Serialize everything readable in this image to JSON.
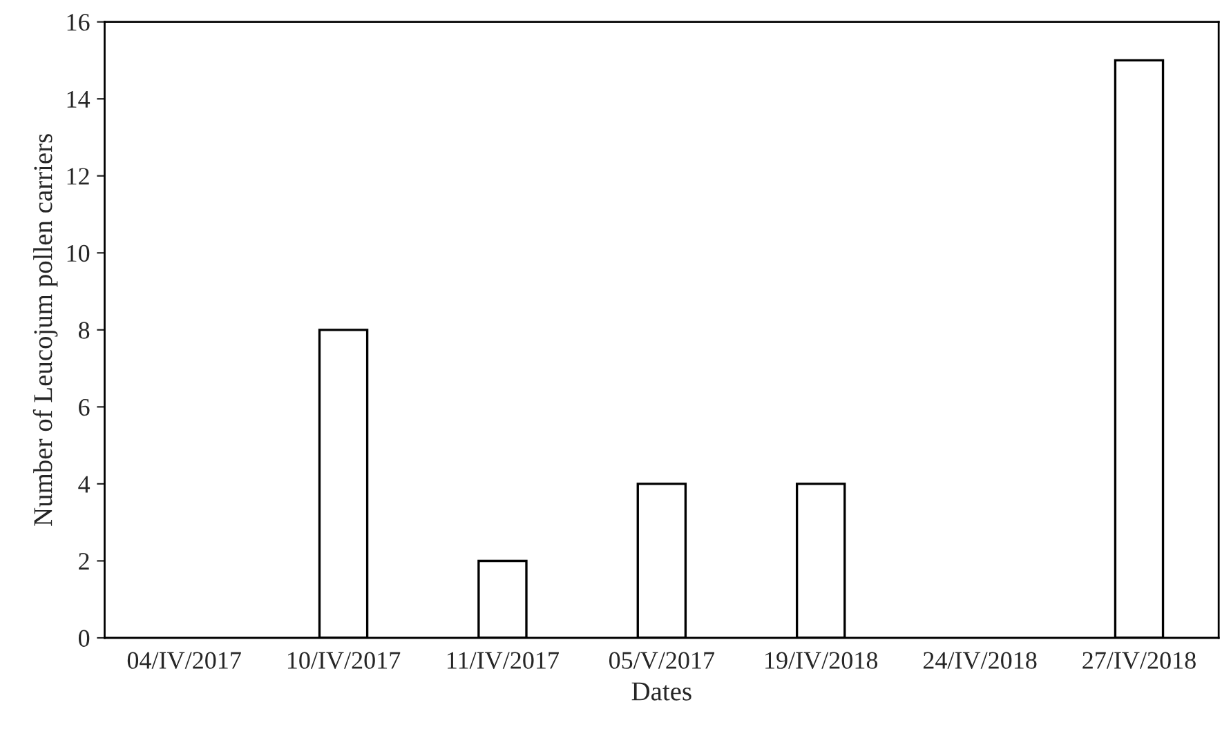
{
  "chart_data": {
    "type": "bar",
    "xlabel": "Dates",
    "ylabel": "Number of Leucojum pollen carriers",
    "categories": [
      "04/IV/2017",
      "10/IV/2017",
      "11/IV/2017",
      "05/V/2017",
      "19/IV/2018",
      "24/IV/2018",
      "27/IV/2018"
    ],
    "values": [
      0,
      8,
      2,
      4,
      4,
      0,
      15
    ],
    "color": "#ffffff",
    "ylim": [
      0,
      16
    ],
    "yticks": [
      0,
      2,
      4,
      6,
      8,
      10,
      12,
      14,
      16
    ],
    "grid": false,
    "legend": false
  }
}
